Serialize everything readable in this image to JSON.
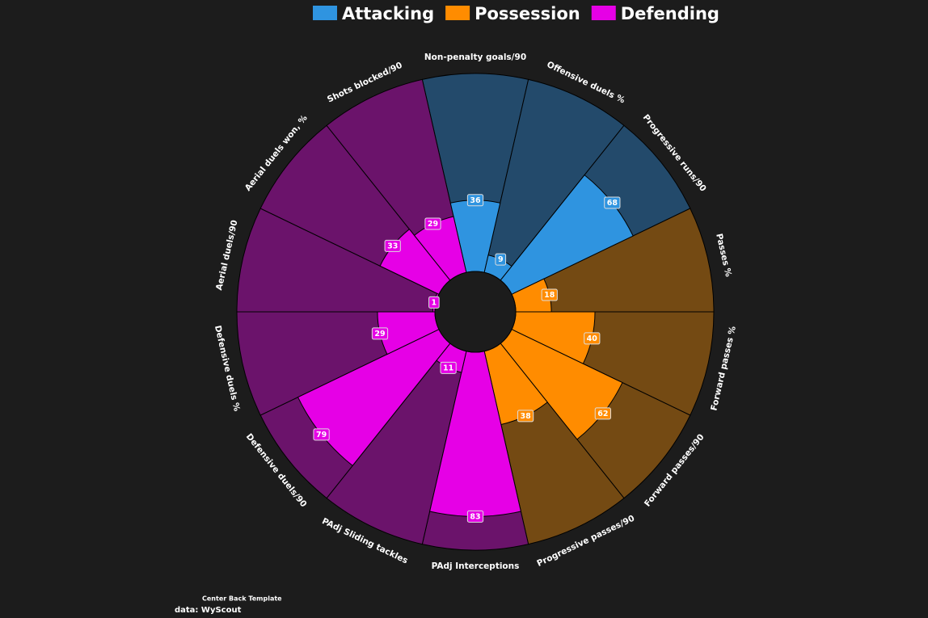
{
  "chart_data": {
    "type": "polar",
    "categories": [
      "Non-penalty goals/90",
      "Offensive duels %",
      "Progressive runs/90",
      "Passes %",
      "Forward passes %",
      "Forward passes/90",
      "Progressive passes/90",
      "PAdj Interceptions",
      "PAdj Sliding tackles",
      "Defensive duels/90",
      "Defensive duels %",
      "Aerial duels/90",
      "Aerial duels won, %",
      "Shots blocked/90"
    ],
    "series": [
      {
        "name": "Attacking",
        "color": "#2f94e0",
        "background_color": "#234a6b",
        "values": [
          36,
          9,
          68,
          null,
          null,
          null,
          null,
          null,
          null,
          null,
          null,
          null,
          null,
          null
        ]
      },
      {
        "name": "Possession",
        "color": "#ff8c00",
        "background_color": "#744a13",
        "values": [
          null,
          null,
          null,
          18,
          40,
          62,
          38,
          null,
          null,
          null,
          null,
          null,
          null,
          null
        ]
      },
      {
        "name": "Defending",
        "color": "#e600e6",
        "background_color": "#6b136b",
        "values": [
          null,
          null,
          null,
          null,
          null,
          null,
          null,
          83,
          11,
          79,
          29,
          1,
          33,
          29
        ]
      }
    ],
    "ylim": [
      0,
      100
    ],
    "legend": "top",
    "annotations": [
      "Center Back Template",
      "data: WyScout"
    ]
  }
}
